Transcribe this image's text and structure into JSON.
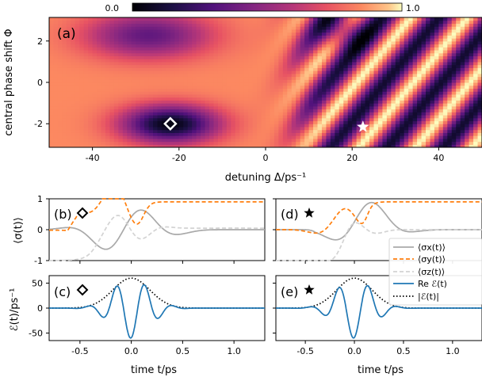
{
  "colorbar": {
    "min_label": "0.0",
    "max_label": "1.0"
  },
  "chart_data": [
    {
      "panel": "(a)",
      "type": "heatmap",
      "colormap": "magma",
      "xlabel": "detuning Δ/ps⁻¹",
      "ylabel": "central phase shift Φ",
      "xlim": [
        -50,
        50
      ],
      "ylim": [
        -3.14,
        3.14
      ],
      "x_ticks": [
        -40,
        -20,
        0,
        20,
        40
      ],
      "y_ticks": [
        -2,
        0,
        2
      ],
      "value_range": [
        0,
        1
      ],
      "markers": [
        {
          "symbol": "diamond",
          "x": -22,
          "y": -2.0
        },
        {
          "symbol": "star",
          "x": 22.5,
          "y": -2.15
        }
      ]
    },
    {
      "panel": "(b)",
      "marker": "diamond",
      "type": "line",
      "ylabel": "⟨σ(t)⟩",
      "xlim": [
        -0.8,
        1.3
      ],
      "ylim": [
        -1,
        1
      ],
      "y_ticks": [
        -1,
        0,
        1
      ],
      "series": [
        "sx",
        "sy",
        "sz"
      ]
    },
    {
      "panel": "(d)",
      "marker": "star",
      "type": "line",
      "xlim": [
        -0.8,
        1.3
      ],
      "ylim": [
        -1,
        1
      ],
      "series": [
        "sx",
        "sy",
        "sz"
      ],
      "legend": "right",
      "legend_entries": [
        "⟨σx(t)⟩",
        "⟨σy(t)⟩",
        "⟨σz(t)⟩",
        "Re ℰ(t)",
        "|ℰ(t)|"
      ]
    },
    {
      "panel": "(c)",
      "marker": "diamond",
      "type": "line",
      "xlabel": "time t/ps",
      "ylabel": "ℰ(t)/ps⁻¹",
      "xlim": [
        -0.8,
        1.3
      ],
      "ylim": [
        -65,
        65
      ],
      "x_ticks": [
        "-0.5",
        "0.0",
        "0.5",
        "1.0"
      ],
      "y_ticks": [
        -50,
        0,
        50
      ],
      "series": [
        "Re ℰ(t)",
        "|ℰ(t)|"
      ],
      "envelope_peak": 60
    },
    {
      "panel": "(e)",
      "marker": "star",
      "type": "line",
      "xlabel": "time t/ps",
      "xlim": [
        -0.8,
        1.3
      ],
      "ylim": [
        -65,
        65
      ],
      "x_ticks": [
        "-0.5",
        "0.0",
        "0.5",
        "1.0"
      ],
      "series": [
        "Re ℰ(t)",
        "|ℰ(t)|"
      ],
      "envelope_peak": 60
    }
  ],
  "colors": {
    "sx": "#a9a9a9",
    "sy": "#ff7f0e",
    "sz": "#d3d3d3",
    "re": "#1f77b4",
    "abs": "#000000"
  }
}
